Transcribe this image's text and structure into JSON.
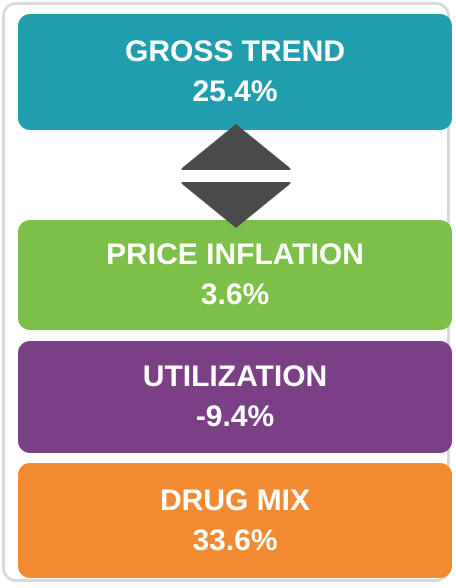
{
  "boxes": [
    {
      "label": "GROSS TREND",
      "value": "25.4%",
      "color": "#219eae"
    },
    {
      "label": "PRICE INFLATION",
      "value": "3.6%",
      "color": "#7cbf49"
    },
    {
      "label": "UTILIZATION",
      "value": "-9.4%",
      "color": "#7b3f85"
    },
    {
      "label": "DRUG MIX",
      "value": "33.6%",
      "color": "#f28a31"
    }
  ]
}
